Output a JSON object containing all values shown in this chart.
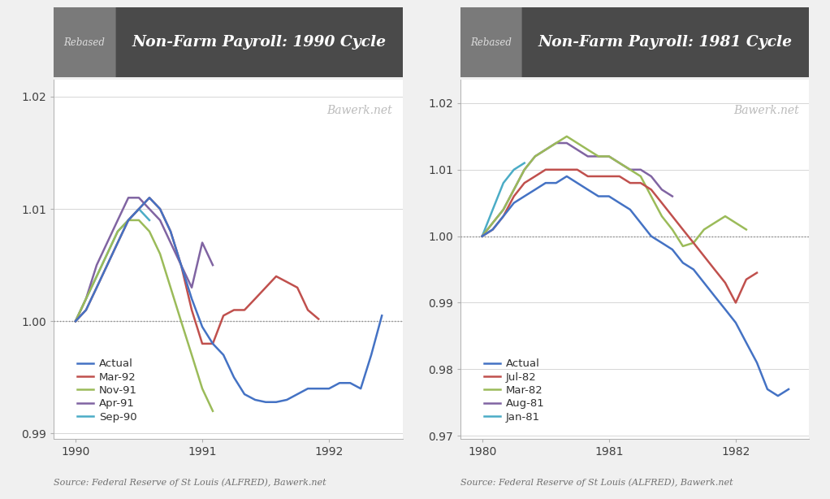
{
  "chart1": {
    "title": "Non-Farm Payroll: 1990 Cycle",
    "rebased_label": "Rebased",
    "watermark": "Bawerk.net",
    "ylim": [
      0.9895,
      1.0215
    ],
    "yticks": [
      0.99,
      1.0,
      1.01,
      1.02
    ],
    "ytick_labels": [
      "0.99",
      "1.00",
      "1.01",
      "1.02"
    ],
    "xlim": [
      1989.83,
      1992.58
    ],
    "xticks": [
      1990,
      1991,
      1992
    ],
    "source": "Source: Federal Reserve of St Louis (ALFRED), Bawerk.net",
    "series": {
      "Actual": {
        "color": "#4472C4",
        "x": [
          1990.0,
          1990.083,
          1990.167,
          1990.25,
          1990.333,
          1990.417,
          1990.5,
          1990.583,
          1990.667,
          1990.75,
          1990.833,
          1990.917,
          1991.0,
          1991.083,
          1991.167,
          1991.25,
          1991.333,
          1991.417,
          1991.5,
          1991.583,
          1991.667,
          1991.75,
          1991.833,
          1991.917,
          1992.0,
          1992.083,
          1992.167,
          1992.25,
          1992.333,
          1992.417
        ],
        "y": [
          1.0,
          1.001,
          1.003,
          1.005,
          1.007,
          1.009,
          1.01,
          1.011,
          1.01,
          1.008,
          1.005,
          1.002,
          0.9995,
          0.998,
          0.997,
          0.995,
          0.9935,
          0.993,
          0.9928,
          0.9928,
          0.993,
          0.9935,
          0.994,
          0.994,
          0.994,
          0.9945,
          0.9945,
          0.994,
          0.997,
          1.0005
        ]
      },
      "Mar-92": {
        "color": "#C0504D",
        "x": [
          1990.0,
          1990.083,
          1990.167,
          1990.25,
          1990.333,
          1990.417,
          1990.5,
          1990.583,
          1990.667,
          1990.75,
          1990.833,
          1990.917,
          1991.0,
          1991.083,
          1991.167,
          1991.25,
          1991.333,
          1991.417,
          1991.5,
          1991.583,
          1991.667,
          1991.75,
          1991.833,
          1991.917
        ],
        "y": [
          1.0,
          1.001,
          1.003,
          1.005,
          1.007,
          1.009,
          1.01,
          1.011,
          1.01,
          1.008,
          1.005,
          1.001,
          0.998,
          0.998,
          1.0005,
          1.001,
          1.001,
          1.002,
          1.003,
          1.004,
          1.0035,
          1.003,
          1.001,
          1.0002
        ]
      },
      "Nov-91": {
        "color": "#9BBB59",
        "x": [
          1990.0,
          1990.083,
          1990.167,
          1990.25,
          1990.333,
          1990.417,
          1990.5,
          1990.583,
          1990.667,
          1990.75,
          1990.833,
          1990.917,
          1991.0,
          1991.083
        ],
        "y": [
          1.0,
          1.002,
          1.004,
          1.006,
          1.008,
          1.009,
          1.009,
          1.008,
          1.006,
          1.003,
          1.0,
          0.997,
          0.994,
          0.992
        ]
      },
      "Apr-91": {
        "color": "#8064A2",
        "x": [
          1990.0,
          1990.083,
          1990.167,
          1990.25,
          1990.333,
          1990.417,
          1990.5,
          1990.583,
          1990.667,
          1990.75,
          1990.833,
          1990.917,
          1991.0,
          1991.083
        ],
        "y": [
          1.0,
          1.002,
          1.005,
          1.007,
          1.009,
          1.011,
          1.011,
          1.01,
          1.009,
          1.007,
          1.005,
          1.003,
          1.007,
          1.005
        ]
      },
      "Sep-90": {
        "color": "#4BACC6",
        "x": [
          1990.0,
          1990.083,
          1990.167,
          1990.25,
          1990.333,
          1990.417,
          1990.5,
          1990.583
        ],
        "y": [
          1.0,
          1.002,
          1.004,
          1.006,
          1.008,
          1.009,
          1.01,
          1.009
        ]
      }
    }
  },
  "chart2": {
    "title": "Non-Farm Payroll: 1981 Cycle",
    "rebased_label": "Rebased",
    "watermark": "Bawerk.net",
    "ylim": [
      0.9695,
      1.0235
    ],
    "yticks": [
      0.97,
      0.98,
      0.99,
      1.0,
      1.01,
      1.02
    ],
    "ytick_labels": [
      "0.97",
      "0.98",
      "0.99",
      "1.00",
      "1.01",
      "1.02"
    ],
    "xlim": [
      1979.83,
      1982.58
    ],
    "xticks": [
      1980,
      1981,
      1982
    ],
    "source": "Source: Federal Reserve of St Louis (ALFRED), Bawerk.net",
    "series": {
      "Actual": {
        "color": "#4472C4",
        "x": [
          1980.0,
          1980.083,
          1980.167,
          1980.25,
          1980.333,
          1980.417,
          1980.5,
          1980.583,
          1980.667,
          1980.75,
          1980.833,
          1980.917,
          1981.0,
          1981.083,
          1981.167,
          1981.25,
          1981.333,
          1981.417,
          1981.5,
          1981.583,
          1981.667,
          1981.75,
          1981.833,
          1981.917,
          1982.0,
          1982.083,
          1982.167,
          1982.25,
          1982.333,
          1982.417
        ],
        "y": [
          1.0,
          1.001,
          1.003,
          1.005,
          1.006,
          1.007,
          1.008,
          1.008,
          1.009,
          1.008,
          1.007,
          1.006,
          1.006,
          1.005,
          1.004,
          1.002,
          1.0,
          0.999,
          0.998,
          0.996,
          0.995,
          0.993,
          0.991,
          0.989,
          0.987,
          0.984,
          0.981,
          0.977,
          0.976,
          0.977
        ]
      },
      "Jul-82": {
        "color": "#C0504D",
        "x": [
          1980.0,
          1980.083,
          1980.167,
          1980.25,
          1980.333,
          1980.417,
          1980.5,
          1980.583,
          1980.667,
          1980.75,
          1980.833,
          1980.917,
          1981.0,
          1981.083,
          1981.167,
          1981.25,
          1981.333,
          1981.417,
          1981.5,
          1981.583,
          1981.667,
          1981.75,
          1981.833,
          1981.917,
          1982.0,
          1982.083,
          1982.167
        ],
        "y": [
          1.0,
          1.001,
          1.003,
          1.006,
          1.008,
          1.009,
          1.01,
          1.01,
          1.01,
          1.01,
          1.009,
          1.009,
          1.009,
          1.009,
          1.008,
          1.008,
          1.007,
          1.005,
          1.003,
          1.001,
          0.999,
          0.997,
          0.995,
          0.993,
          0.99,
          0.9935,
          0.9945
        ]
      },
      "Mar-82": {
        "color": "#9BBB59",
        "x": [
          1980.0,
          1980.083,
          1980.167,
          1980.25,
          1980.333,
          1980.417,
          1980.5,
          1980.583,
          1980.667,
          1980.75,
          1980.833,
          1980.917,
          1981.0,
          1981.083,
          1981.167,
          1981.25,
          1981.333,
          1981.417,
          1981.5,
          1981.583,
          1981.667,
          1981.75,
          1981.833,
          1981.917,
          1982.0,
          1982.083
        ],
        "y": [
          1.0,
          1.002,
          1.004,
          1.007,
          1.01,
          1.012,
          1.013,
          1.014,
          1.015,
          1.014,
          1.013,
          1.012,
          1.012,
          1.011,
          1.01,
          1.009,
          1.006,
          1.003,
          1.001,
          0.9985,
          0.999,
          1.001,
          1.002,
          1.003,
          1.002,
          1.001
        ]
      },
      "Aug-81": {
        "color": "#8064A2",
        "x": [
          1980.0,
          1980.083,
          1980.167,
          1980.25,
          1980.333,
          1980.417,
          1980.5,
          1980.583,
          1980.667,
          1980.75,
          1980.833,
          1980.917,
          1981.0,
          1981.083,
          1981.167,
          1981.25,
          1981.333,
          1981.417,
          1981.5
        ],
        "y": [
          1.0,
          1.002,
          1.004,
          1.007,
          1.01,
          1.012,
          1.013,
          1.014,
          1.014,
          1.013,
          1.012,
          1.012,
          1.012,
          1.011,
          1.01,
          1.01,
          1.009,
          1.007,
          1.006
        ]
      },
      "Jan-81": {
        "color": "#4BACC6",
        "x": [
          1980.0,
          1980.083,
          1980.167,
          1980.25,
          1980.333
        ],
        "y": [
          1.0,
          1.004,
          1.008,
          1.01,
          1.011
        ]
      }
    }
  },
  "bg_color": "#f0f0f0",
  "header_bg": "#4A4A4A",
  "header_rebased_bg": "#7A7A7A",
  "plot_bg": "#ffffff",
  "grid_color": "#d0d0d0",
  "source_color": "#707070",
  "watermark_color": "#BBBBBB",
  "line_width": 1.8
}
